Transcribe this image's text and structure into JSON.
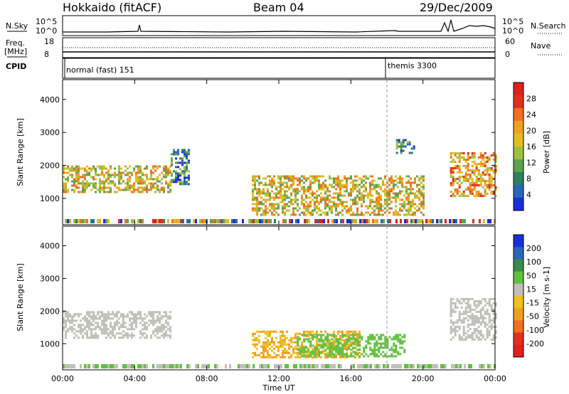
{
  "header": {
    "station": "Hokkaido (fitACF)",
    "beam": "Beam 04",
    "date": "29/Dec/2009"
  },
  "top_panels": {
    "nsky_label": "N.Sky",
    "nsky_ticks": [
      "10^5",
      "10^0"
    ],
    "nsearch_label": "N.Search",
    "nsearch_ticks": [
      "10^5",
      "10^0"
    ],
    "freq_label": "Freq.",
    "freq_unit": "[MHz]",
    "freq_ticks": [
      "18",
      "8"
    ],
    "nave_label": "Nave",
    "nave_ticks": [
      "60",
      "0"
    ],
    "cpid_label": "CPID",
    "cpid_modes": [
      {
        "name": "normal (fast) 151",
        "start": "00:00"
      },
      {
        "name": "themis 3300",
        "start": "18:00"
      }
    ]
  },
  "chart_data": [
    {
      "type": "heatmap",
      "title": "",
      "xlabel": "Time UT",
      "ylabel": "Slant Range [km]",
      "x_ticks": [
        "00:00",
        "04:00",
        "08:00",
        "12:00",
        "16:00",
        "20:00",
        "00:00"
      ],
      "y_ticks": [
        1000,
        2000,
        3000,
        4000
      ],
      "ylim": [
        200,
        4600
      ],
      "colorbar": {
        "label": "Power [dB]",
        "ticks": [
          "4",
          "8",
          "12",
          "16",
          "20",
          "24",
          "28"
        ],
        "colors": [
          "#1a2fd8",
          "#2a66b8",
          "#2f7f62",
          "#5fa050",
          "#a0c040",
          "#e0c020",
          "#f0a020",
          "#f07020",
          "#e03020",
          "#e02020"
        ]
      },
      "features": [
        {
          "time_start": "00:00",
          "time_end": "06:00",
          "range_km": [
            1200,
            2000
          ],
          "level_db": 20
        },
        {
          "time_start": "06:00",
          "time_end": "07:00",
          "range_km": [
            1400,
            2500
          ],
          "level_db": 8
        },
        {
          "time_start": "10:30",
          "time_end": "20:00",
          "range_km": [
            500,
            1700
          ],
          "level_db": 18
        },
        {
          "time_start": "18:30",
          "time_end": "19:30",
          "range_km": [
            2400,
            2800
          ],
          "level_db": 6
        },
        {
          "time_start": "21:30",
          "time_end": "24:00",
          "range_km": [
            1100,
            2400
          ],
          "level_db": 22
        }
      ]
    },
    {
      "type": "heatmap",
      "title": "",
      "xlabel": "Time UT",
      "ylabel": "Slant Range [km]",
      "x_ticks": [
        "00:00",
        "04:00",
        "08:00",
        "12:00",
        "16:00",
        "20:00",
        "00:00"
      ],
      "y_ticks": [
        1000,
        2000,
        3000,
        4000
      ],
      "ylim": [
        200,
        4600
      ],
      "colorbar": {
        "label": "Velocity [m s-1]",
        "ticks": [
          "200",
          "100",
          "50",
          "15",
          "-15",
          "-50",
          "-100",
          "-200"
        ],
        "colors": [
          "#1a2fd8",
          "#2a66b8",
          "#3a8a50",
          "#60c040",
          "#c0c0b8",
          "#f0c020",
          "#f0a020",
          "#f07020",
          "#e03020",
          "#e02020"
        ]
      },
      "features": [
        {
          "time_start": "00:00",
          "time_end": "06:00",
          "range_km": [
            1200,
            2000
          ],
          "velocity": 0
        },
        {
          "time_start": "10:30",
          "time_end": "16:30",
          "range_km": [
            600,
            1400
          ],
          "velocity": -50
        },
        {
          "time_start": "13:00",
          "time_end": "19:00",
          "range_km": [
            600,
            1300
          ],
          "velocity": 40
        },
        {
          "time_start": "21:30",
          "time_end": "24:00",
          "range_km": [
            1100,
            2400
          ],
          "velocity": 0
        }
      ]
    }
  ]
}
